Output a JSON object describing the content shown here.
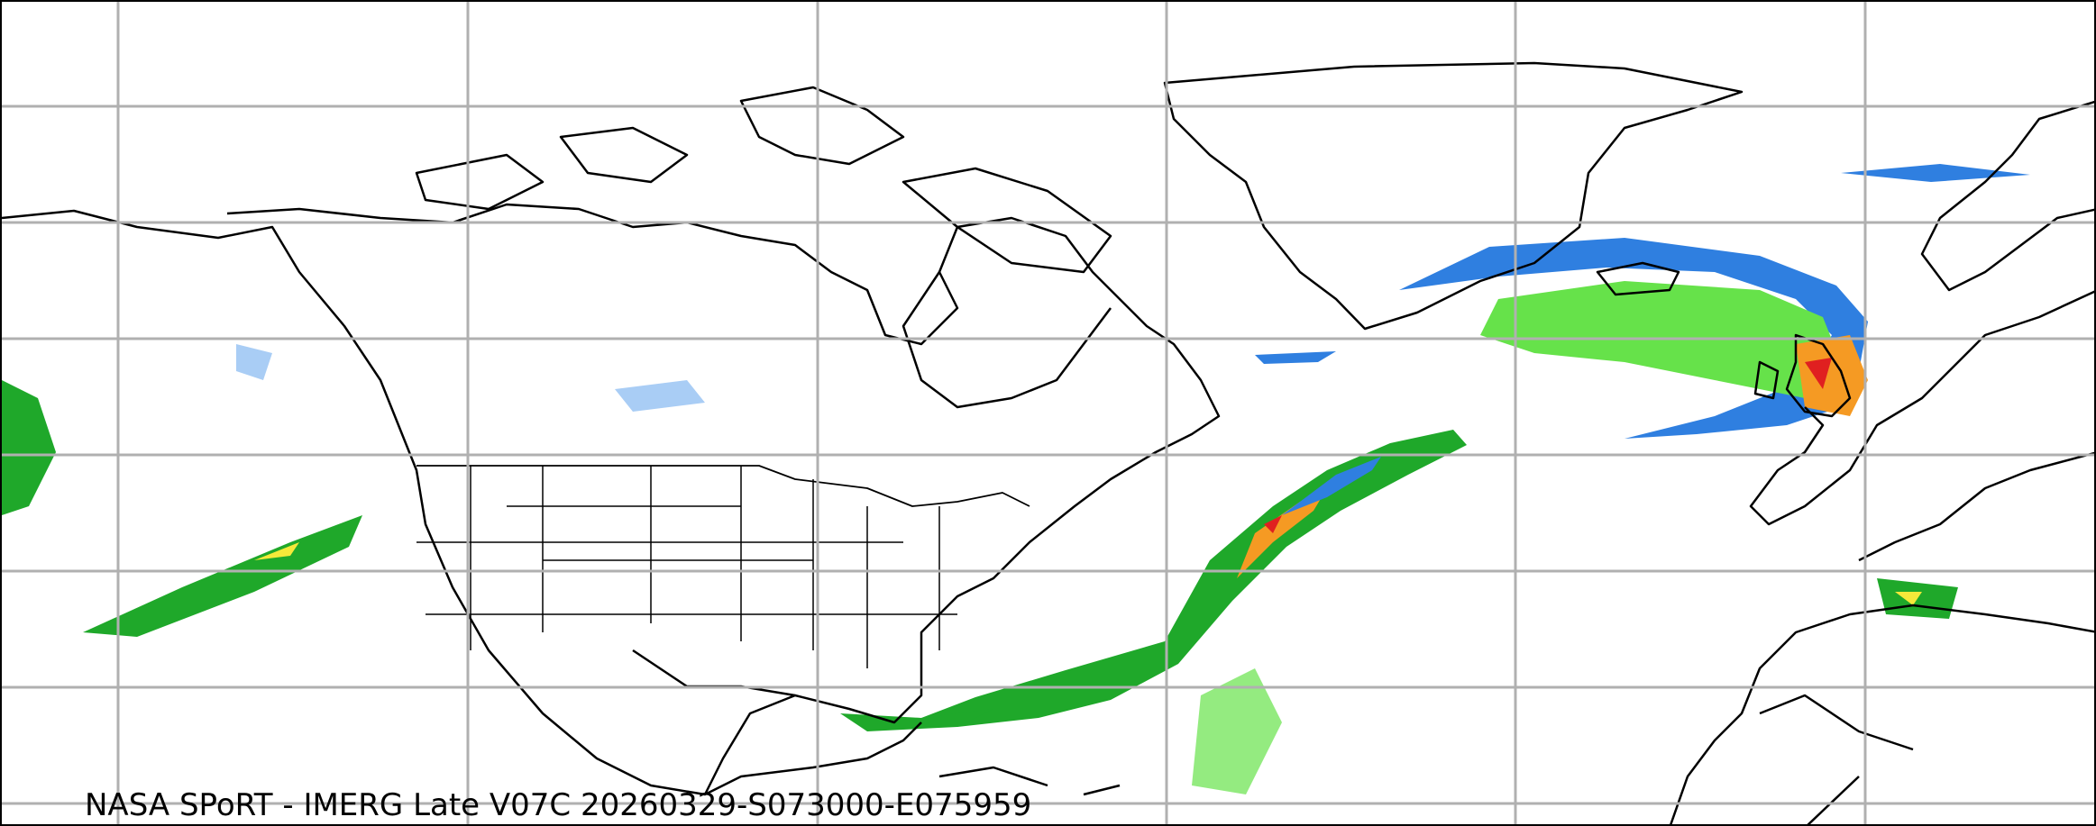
{
  "caption": "NASA SPoRT - IMERG Late V07C 20260329-S073000-E075959",
  "map": {
    "projection_view": "North America and North Atlantic",
    "gridlines": true,
    "gridline_color": "#b0b0b0",
    "coastline_color": "#000000",
    "precip_colors": {
      "light_blue": "#a9cdf5",
      "blue": "#2f7fe0",
      "light_green": "#66e24a",
      "green": "#1fa82a",
      "dark_green": "#0a6e1a",
      "yellow": "#f5e93a",
      "orange": "#f59a23",
      "red": "#e02020",
      "magenta": "#e040c0"
    }
  }
}
